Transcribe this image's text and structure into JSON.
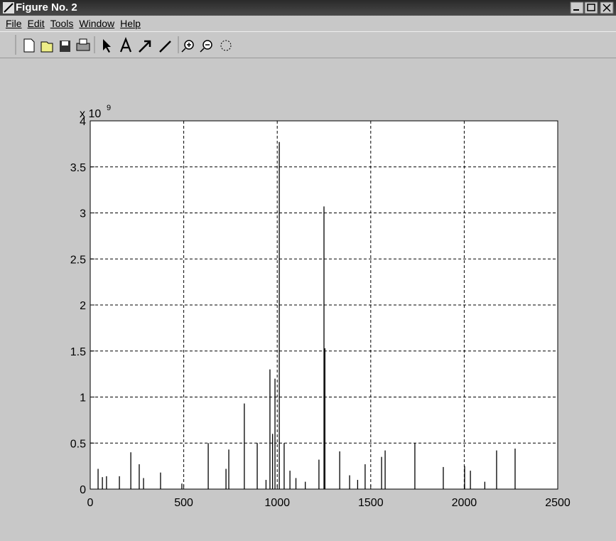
{
  "window": {
    "title": "Figure No. 2"
  },
  "menu": [
    "File",
    "Edit",
    "Tools",
    "Window",
    "Help"
  ],
  "chart_data": {
    "type": "stem",
    "axis_multiplier": "x 10",
    "axis_multiplier_exponent": "9",
    "color": "#000000",
    "grid": true,
    "xlim": [
      0,
      2500
    ],
    "ylim": [
      0,
      4
    ],
    "xticks": [
      0,
      500,
      1000,
      1500,
      2000,
      2500
    ],
    "yticks": [
      0,
      0.5,
      1,
      1.5,
      2,
      2.5,
      3,
      3.5,
      4
    ],
    "x": [
      42,
      65,
      87,
      156,
      217,
      262,
      285,
      376,
      490,
      631,
      726,
      741,
      824,
      893,
      940,
      961,
      975,
      988,
      1011,
      1037,
      1068,
      1100,
      1150,
      1223,
      1250,
      1255,
      1334,
      1387,
      1430,
      1470,
      1558,
      1577,
      1736,
      1888,
      2002,
      2033,
      2110,
      2173,
      2272
    ],
    "values": [
      0.22,
      0.13,
      0.14,
      0.14,
      0.4,
      0.27,
      0.12,
      0.18,
      0.06,
      0.5,
      0.22,
      0.43,
      0.93,
      0.5,
      0.1,
      1.3,
      0.6,
      1.2,
      3.77,
      0.5,
      0.2,
      0.12,
      0.08,
      0.32,
      3.07,
      1.53,
      0.41,
      0.15,
      0.1,
      0.27,
      0.35,
      0.42,
      0.5,
      0.24,
      0.25,
      0.2,
      0.08,
      0.42,
      0.44
    ]
  }
}
